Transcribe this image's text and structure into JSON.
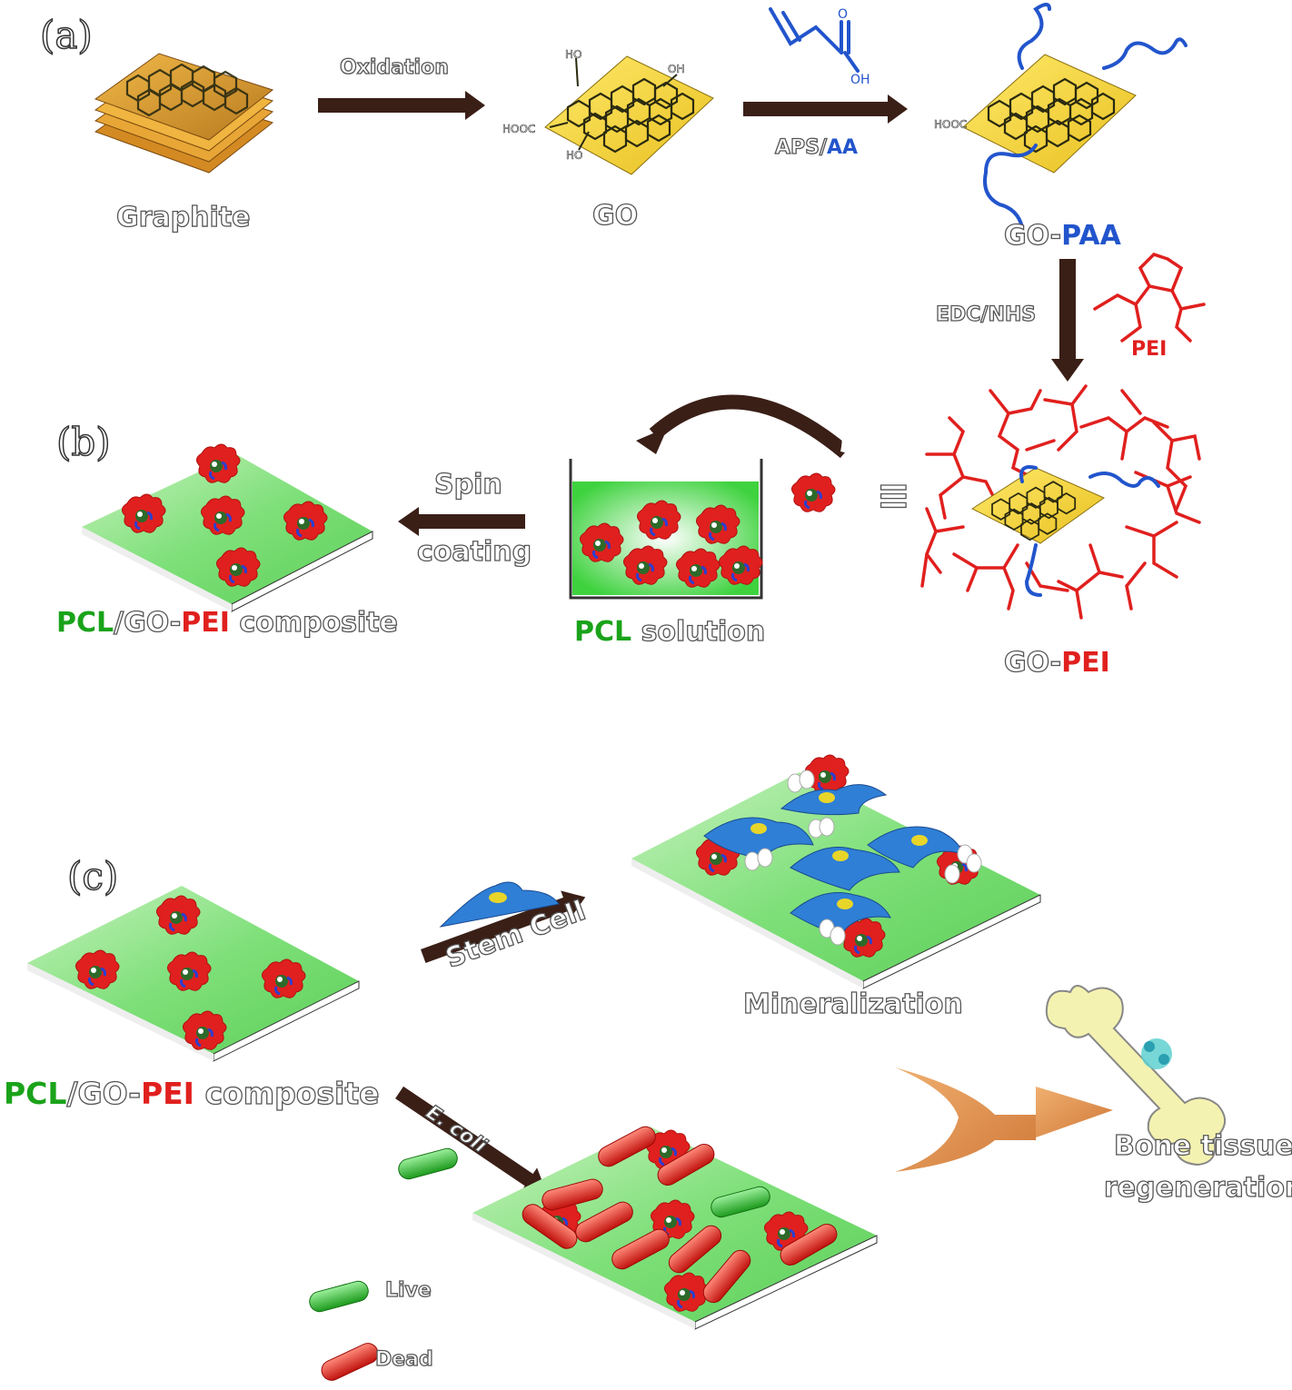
{
  "panels": [
    "(a)",
    "(b)",
    "(c)"
  ],
  "labels": {
    "graphite": "Graphite",
    "oxidation": "Oxidation",
    "go": "GO",
    "aps": "APS/",
    "aa": "AA",
    "go_prefix": "GO-",
    "paa": "PAA",
    "edc_nhs": "EDC/NHS",
    "pei": "PEI",
    "pei_suffix": "PEI",
    "spin": "Spin",
    "coating": "coating",
    "pcl": "PCL",
    "slash": "/",
    "go_dash": "GO-",
    "composite": " composite",
    "solution": " solution",
    "stem_cell": "Stem Cell",
    "mineralization": "Mineralization",
    "ecoli": "E. coli",
    "live": "Live",
    "dead": "Dead",
    "bone1": "Bone tissue",
    "bone2": "regeneration",
    "equiv": "≡"
  },
  "chem": {
    "ho": "HO",
    "oh": "OH",
    "hooc": "HOOC",
    "oh_acid": "OH",
    "o_acid": "O"
  },
  "colors": {
    "arrow": "#3a1f17",
    "pcl_green": "#1aa31a",
    "pei_red": "#e0201e",
    "paa_blue": "#2255cc",
    "go_yellow": "#f2d02a",
    "graphite_orange": "#e0a030",
    "surface_green": "#7ee07a",
    "cell_blue": "#2f7fd6",
    "bone": "#f4f2b0"
  }
}
